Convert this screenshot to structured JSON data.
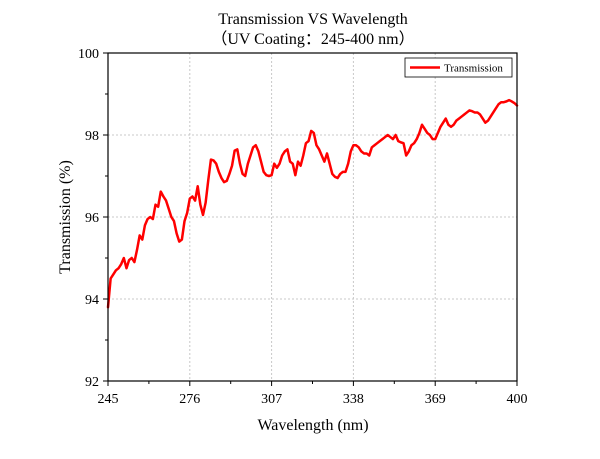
{
  "colors": {
    "series": "#ff0000",
    "axis": "#000000",
    "grid": "#c8c8c8"
  },
  "chart_data": {
    "type": "line",
    "title": "Transmission VS Wavelength",
    "subtitle": "（UV Coating：245-400 nm）",
    "xlabel": "Wavelength (nm)",
    "ylabel": "Transmission (%)",
    "xlim": [
      245,
      400
    ],
    "ylim": [
      92,
      100
    ],
    "xticks": [
      245,
      276,
      307,
      338,
      369,
      400
    ],
    "yticks": [
      92,
      94,
      96,
      98,
      100
    ],
    "grid": true,
    "legend": "top-right",
    "series": [
      {
        "name": "Transmission",
        "color": "#ff0000",
        "x": [
          245,
          246,
          247,
          248,
          249,
          250,
          251,
          252,
          253,
          254,
          255,
          256,
          257,
          258,
          259,
          260,
          261,
          262,
          263,
          264,
          265,
          266,
          267,
          268,
          269,
          270,
          271,
          272,
          273,
          274,
          275,
          276,
          277,
          278,
          279,
          280,
          281,
          282,
          283,
          284,
          285,
          286,
          287,
          288,
          289,
          290,
          291,
          292,
          293,
          294,
          295,
          296,
          297,
          298,
          299,
          300,
          301,
          302,
          303,
          304,
          305,
          306,
          307,
          308,
          309,
          310,
          311,
          312,
          313,
          314,
          315,
          316,
          317,
          318,
          319,
          320,
          321,
          322,
          323,
          324,
          325,
          326,
          327,
          328,
          329,
          330,
          331,
          332,
          333,
          334,
          335,
          336,
          337,
          338,
          339,
          340,
          341,
          342,
          343,
          344,
          345,
          346,
          347,
          348,
          349,
          350,
          351,
          352,
          353,
          354,
          355,
          356,
          357,
          358,
          359,
          360,
          361,
          362,
          363,
          364,
          365,
          366,
          367,
          368,
          369,
          370,
          371,
          372,
          373,
          374,
          375,
          376,
          377,
          378,
          379,
          380,
          381,
          382,
          383,
          384,
          385,
          386,
          387,
          388,
          389,
          390,
          391,
          392,
          393,
          394,
          395,
          396,
          397,
          398,
          399,
          400
        ],
        "values": [
          93.8,
          94.5,
          94.6,
          94.7,
          94.75,
          94.85,
          95.0,
          94.75,
          94.95,
          95.0,
          94.9,
          95.2,
          95.55,
          95.45,
          95.8,
          95.95,
          96.0,
          95.95,
          96.3,
          96.25,
          96.62,
          96.5,
          96.4,
          96.2,
          96.0,
          95.9,
          95.6,
          95.4,
          95.45,
          95.9,
          96.1,
          96.45,
          96.5,
          96.4,
          96.75,
          96.3,
          96.05,
          96.35,
          96.9,
          97.4,
          97.38,
          97.3,
          97.1,
          96.95,
          96.85,
          96.88,
          97.05,
          97.25,
          97.62,
          97.65,
          97.3,
          97.05,
          97.0,
          97.3,
          97.5,
          97.7,
          97.75,
          97.6,
          97.35,
          97.1,
          97.02,
          97.0,
          97.02,
          97.3,
          97.2,
          97.3,
          97.5,
          97.6,
          97.65,
          97.35,
          97.3,
          97.02,
          97.35,
          97.25,
          97.5,
          97.8,
          97.85,
          98.1,
          98.05,
          97.75,
          97.65,
          97.5,
          97.35,
          97.55,
          97.3,
          97.05,
          96.98,
          96.95,
          97.05,
          97.1,
          97.1,
          97.3,
          97.6,
          97.75,
          97.75,
          97.7,
          97.6,
          97.55,
          97.55,
          97.5,
          97.7,
          97.75,
          97.8,
          97.85,
          97.9,
          97.95,
          98.0,
          97.95,
          97.9,
          98.0,
          97.85,
          97.82,
          97.8,
          97.5,
          97.6,
          97.75,
          97.8,
          97.9,
          98.05,
          98.25,
          98.15,
          98.05,
          98.0,
          97.9,
          97.9,
          98.05,
          98.2,
          98.3,
          98.4,
          98.25,
          98.2,
          98.25,
          98.35,
          98.4,
          98.45,
          98.5,
          98.55,
          98.6,
          98.58,
          98.55,
          98.55,
          98.5,
          98.4,
          98.3,
          98.35,
          98.45,
          98.55,
          98.65,
          98.75,
          98.8,
          98.8,
          98.82,
          98.85,
          98.82,
          98.78,
          98.72
        ]
      }
    ]
  }
}
